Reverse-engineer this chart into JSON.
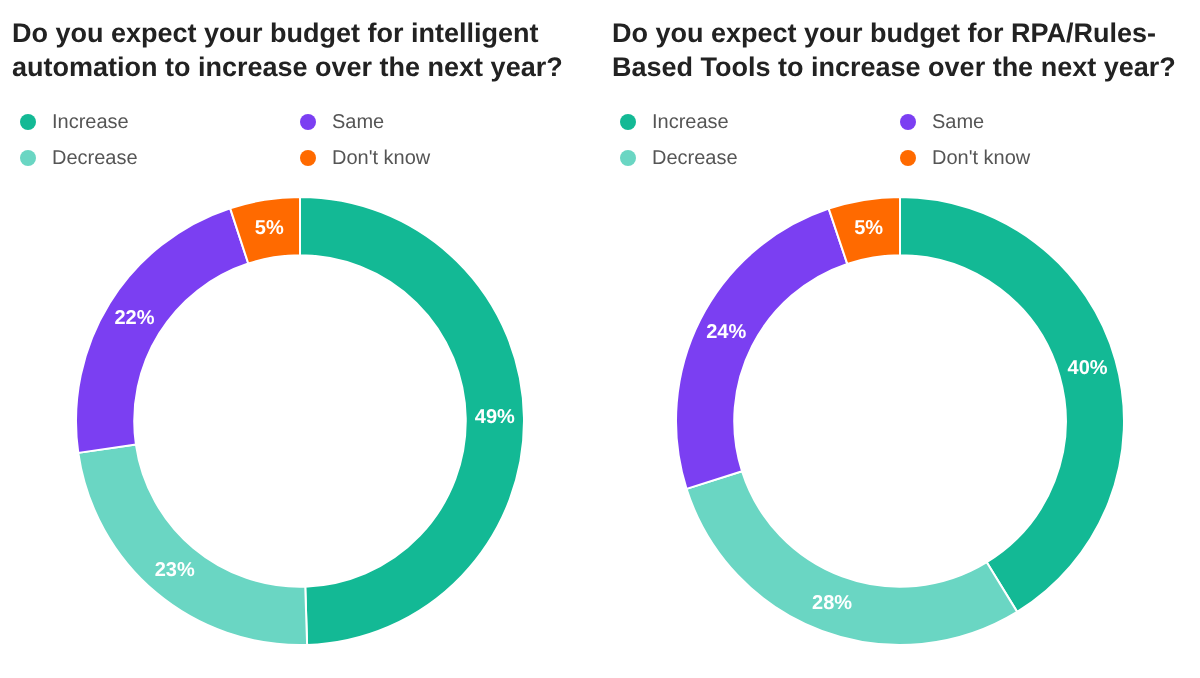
{
  "chart_data": [
    {
      "type": "donut",
      "title": "Do you expect your budget for intelligent automation to increase over the next year?",
      "categories": [
        "Increase",
        "Decrease",
        "Same",
        "Don't know"
      ],
      "values": [
        49,
        23,
        22,
        5
      ],
      "colors": [
        "#13b995",
        "#6ad6c3",
        "#7b3ff2",
        "#ff6a00"
      ],
      "value_labels": [
        "49%",
        "23%",
        "22%",
        "5%"
      ],
      "legend": "top left"
    },
    {
      "type": "donut",
      "title": "Do you expect your budget for RPA/Rules-Based Tools to increase over the next year?",
      "categories": [
        "Increase",
        "Decrease",
        "Same",
        "Don't know"
      ],
      "values": [
        40,
        28,
        24,
        5
      ],
      "colors": [
        "#13b995",
        "#6ad6c3",
        "#7b3ff2",
        "#ff6a00"
      ],
      "value_labels": [
        "40%",
        "28%",
        "24%",
        "5%"
      ],
      "legend": "top left"
    }
  ]
}
